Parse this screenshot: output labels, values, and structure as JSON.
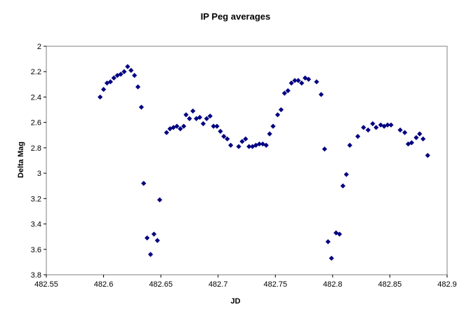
{
  "chart_data": {
    "type": "scatter",
    "title": "IP Peg averages",
    "xlabel": "JD",
    "ylabel": "Delta Mag",
    "xlim": [
      482.55,
      482.9
    ],
    "ylim": [
      2,
      3.8
    ],
    "y_inverted": true,
    "grid": false,
    "legend": "none",
    "marker": "diamond",
    "marker_color": "#000080",
    "x_ticks": [
      "482.55",
      "482.6",
      "482.65",
      "482.7",
      "482.75",
      "482.8",
      "482.85",
      "482.9"
    ],
    "y_ticks": [
      "2",
      "2.2",
      "2.4",
      "2.6",
      "2.8",
      "3",
      "3.2",
      "3.4",
      "3.6",
      "3.8"
    ],
    "points": [
      [
        482.597,
        2.4
      ],
      [
        482.6,
        2.34
      ],
      [
        482.603,
        2.29
      ],
      [
        482.606,
        2.28
      ],
      [
        482.609,
        2.25
      ],
      [
        482.612,
        2.23
      ],
      [
        482.615,
        2.22
      ],
      [
        482.618,
        2.2
      ],
      [
        482.621,
        2.16
      ],
      [
        482.624,
        2.19
      ],
      [
        482.627,
        2.23
      ],
      [
        482.63,
        2.32
      ],
      [
        482.633,
        2.48
      ],
      [
        482.635,
        3.08
      ],
      [
        482.638,
        3.51
      ],
      [
        482.641,
        3.64
      ],
      [
        482.644,
        3.48
      ],
      [
        482.647,
        3.53
      ],
      [
        482.649,
        3.21
      ],
      [
        482.655,
        2.68
      ],
      [
        482.658,
        2.65
      ],
      [
        482.661,
        2.64
      ],
      [
        482.664,
        2.63
      ],
      [
        482.667,
        2.65
      ],
      [
        482.67,
        2.63
      ],
      [
        482.672,
        2.54
      ],
      [
        482.675,
        2.57
      ],
      [
        482.678,
        2.51
      ],
      [
        482.681,
        2.57
      ],
      [
        482.684,
        2.56
      ],
      [
        482.687,
        2.61
      ],
      [
        482.69,
        2.57
      ],
      [
        482.693,
        2.55
      ],
      [
        482.696,
        2.63
      ],
      [
        482.699,
        2.63
      ],
      [
        482.702,
        2.67
      ],
      [
        482.705,
        2.71
      ],
      [
        482.708,
        2.73
      ],
      [
        482.711,
        2.78
      ],
      [
        482.718,
        2.79
      ],
      [
        482.721,
        2.75
      ],
      [
        482.724,
        2.73
      ],
      [
        482.727,
        2.79
      ],
      [
        482.73,
        2.79
      ],
      [
        482.733,
        2.78
      ],
      [
        482.736,
        2.77
      ],
      [
        482.739,
        2.77
      ],
      [
        482.742,
        2.78
      ],
      [
        482.745,
        2.69
      ],
      [
        482.748,
        2.63
      ],
      [
        482.752,
        2.54
      ],
      [
        482.755,
        2.5
      ],
      [
        482.758,
        2.37
      ],
      [
        482.761,
        2.35
      ],
      [
        482.764,
        2.29
      ],
      [
        482.767,
        2.27
      ],
      [
        482.77,
        2.27
      ],
      [
        482.773,
        2.29
      ],
      [
        482.776,
        2.25
      ],
      [
        482.779,
        2.26
      ],
      [
        482.786,
        2.28
      ],
      [
        482.79,
        2.38
      ],
      [
        482.793,
        2.81
      ],
      [
        482.796,
        3.54
      ],
      [
        482.799,
        3.67
      ],
      [
        482.803,
        3.47
      ],
      [
        482.806,
        3.48
      ],
      [
        482.809,
        3.1
      ],
      [
        482.812,
        3.01
      ],
      [
        482.815,
        2.78
      ],
      [
        482.822,
        2.71
      ],
      [
        482.827,
        2.64
      ],
      [
        482.831,
        2.66
      ],
      [
        482.835,
        2.61
      ],
      [
        482.838,
        2.64
      ],
      [
        482.842,
        2.62
      ],
      [
        482.845,
        2.63
      ],
      [
        482.848,
        2.62
      ],
      [
        482.851,
        2.62
      ],
      [
        482.859,
        2.66
      ],
      [
        482.863,
        2.68
      ],
      [
        482.866,
        2.77
      ],
      [
        482.869,
        2.76
      ],
      [
        482.873,
        2.72
      ],
      [
        482.876,
        2.69
      ],
      [
        482.879,
        2.73
      ],
      [
        482.883,
        2.86
      ]
    ]
  }
}
